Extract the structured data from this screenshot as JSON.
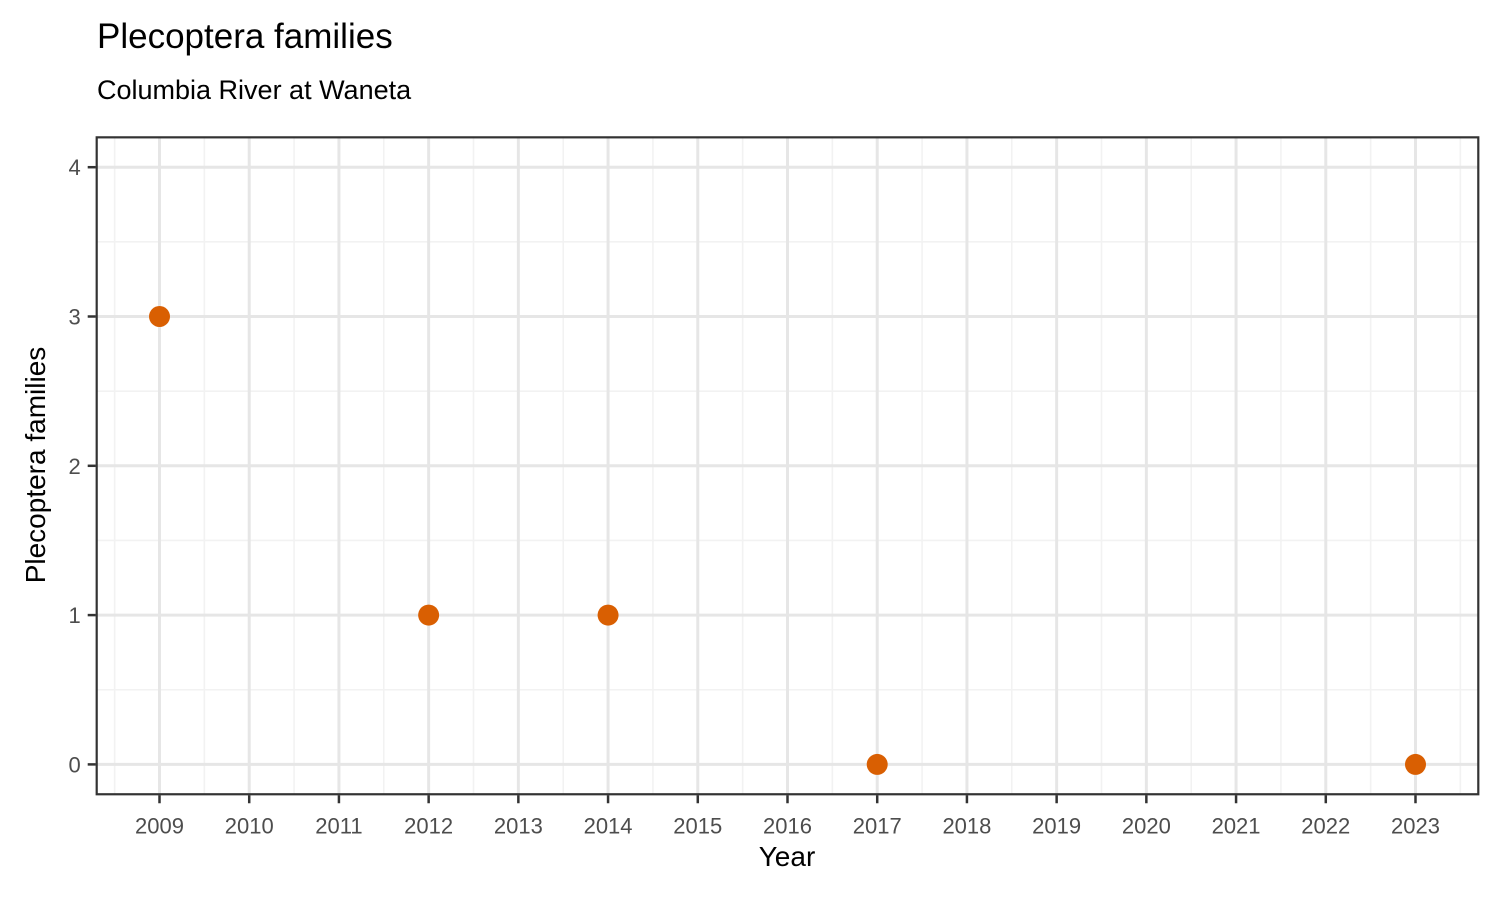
{
  "header": {
    "title": "Plecoptera families",
    "subtitle": "Columbia River at Waneta"
  },
  "chart_data": {
    "type": "scatter",
    "title": "Plecoptera families",
    "subtitle": "Columbia River at Waneta",
    "xlabel": "Year",
    "ylabel": "Plecoptera families",
    "x": [
      2009,
      2012,
      2014,
      2017,
      2023
    ],
    "y": [
      3,
      1,
      1,
      0,
      0
    ],
    "x_ticks": [
      2009,
      2010,
      2011,
      2012,
      2013,
      2014,
      2015,
      2016,
      2017,
      2018,
      2019,
      2020,
      2021,
      2022,
      2023
    ],
    "y_ticks": [
      0,
      1,
      2,
      3,
      4
    ],
    "xlim": [
      2008.3,
      2023.7
    ],
    "ylim": [
      -0.2,
      4.2
    ],
    "grid": "on",
    "legend": "none",
    "style": {
      "point_color": "#D95F02",
      "point_radius": 10.5,
      "panel_background": "#FFFFFF",
      "panel_border_color": "#333333",
      "grid_major_color": "#E6E6E6",
      "grid_minor_color": "#F2F2F2",
      "tick_color": "#333333",
      "tick_label_color": "#4D4D4D",
      "text_color": "#000000"
    }
  }
}
